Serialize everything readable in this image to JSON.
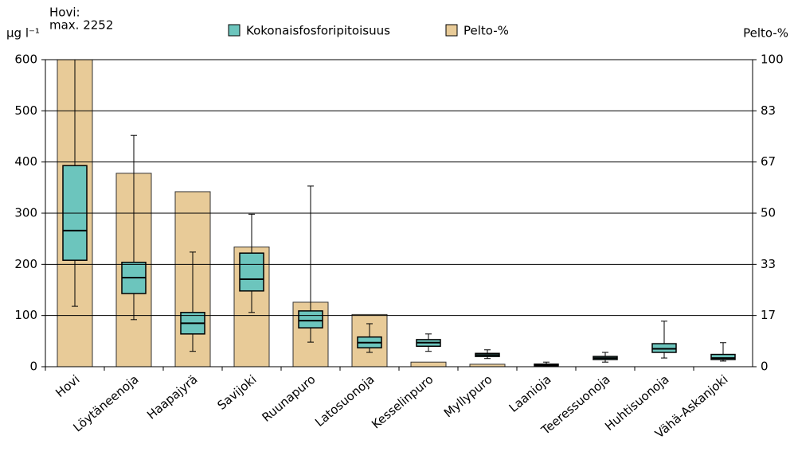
{
  "chart_data": {
    "type": "box",
    "y_label": "µg l⁻¹",
    "y2_label": "Pelto-%",
    "annotation": [
      "Hovi:",
      "max. 2252"
    ],
    "categories": [
      "Hovi",
      "Löytäneenoja",
      "Haapajyrä",
      "Savijoki",
      "Ruunapuro",
      "Latosuonoja",
      "Kesselinpuro",
      "Myllypuro",
      "Laanioja",
      "Teeressuonoja",
      "Huhtisuonoja",
      "Vähä-Askanjoki"
    ],
    "series": [
      {
        "name": "Kokonaisfosforipitoisuus",
        "color": "#6cc5bd",
        "type": "box",
        "max": [
          2252,
          452,
          224,
          298,
          353,
          84,
          64,
          33,
          9,
          28,
          89,
          47
        ],
        "q3": [
          393,
          204,
          106,
          222,
          109,
          58,
          53,
          26,
          5,
          20,
          45,
          24
        ],
        "median": [
          266,
          174,
          85,
          171,
          90,
          47,
          47,
          23,
          3,
          17,
          35,
          17
        ],
        "q1": [
          208,
          143,
          64,
          148,
          76,
          37,
          40,
          20,
          2,
          14,
          28,
          14
        ],
        "min": [
          118,
          92,
          30,
          106,
          48,
          28,
          30,
          16,
          1,
          9,
          17,
          11
        ]
      },
      {
        "name": "Pelto-%",
        "color": "#e8cb98",
        "type": "bar",
        "axis": "y2",
        "values": [
          100,
          63,
          57,
          39,
          21,
          17,
          1.5,
          0.8,
          0,
          0,
          0,
          0
        ]
      }
    ],
    "ylim": [
      0,
      600
    ],
    "yticks": [
      0,
      100,
      200,
      300,
      400,
      500,
      600
    ],
    "y2lim": [
      0,
      100
    ],
    "y2ticks": [
      0,
      {
        "value": 16.67,
        "label": "17"
      },
      {
        "value": 33.33,
        "label": "33"
      },
      50,
      {
        "value": 66.67,
        "label": "67"
      },
      {
        "value": 83.33,
        "label": "83"
      },
      100
    ],
    "grid": true,
    "legend": "top"
  }
}
